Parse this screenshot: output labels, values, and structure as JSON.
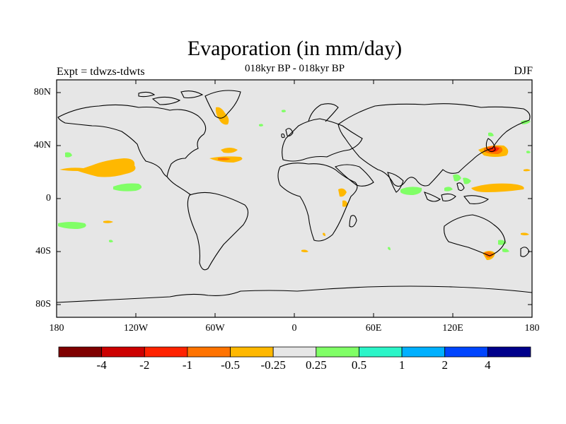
{
  "title": "Evaporation (in mm/day)",
  "experiment_label": "Expt = tdwzs-tdwts",
  "period_label": "018kyr BP - 018kyr BP",
  "season_label": "DJF",
  "map": {
    "background_color": "#e6e6e6",
    "lat_labels": [
      "80N",
      "40N",
      "0",
      "40S",
      "80S"
    ],
    "lon_labels": [
      "180",
      "120W",
      "60W",
      "0",
      "60E",
      "120E",
      "180"
    ]
  },
  "colorbar": {
    "colors": [
      "#7f0000",
      "#cc0000",
      "#ff2200",
      "#ff7300",
      "#ffb800",
      "#e6e6e6",
      "#80ff66",
      "#2bf5c8",
      "#00b0ff",
      "#0045ff",
      "#00008b"
    ],
    "labels": [
      "-4",
      "-2",
      "-1",
      "-0.5",
      "-0.25",
      "0.25",
      "0.5",
      "1",
      "2",
      "4"
    ]
  }
}
